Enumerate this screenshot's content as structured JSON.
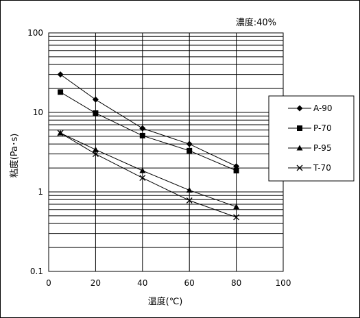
{
  "chart_data": {
    "type": "line",
    "annotation": "濃度:40%",
    "xlabel": "温度(℃)",
    "ylabel": "粘度(Pa･s)",
    "xlim": [
      0,
      100
    ],
    "ylim": [
      0.1,
      100
    ],
    "yscale": "log",
    "grid": true,
    "legend": "right",
    "xticks": [
      "0",
      "20",
      "40",
      "60",
      "80",
      "100"
    ],
    "yticks": [
      "0.1",
      "1",
      "10",
      "100"
    ],
    "series": [
      {
        "name": "A-90",
        "marker": "diamond",
        "x": [
          5,
          20,
          40,
          60,
          80
        ],
        "y": [
          30,
          14.5,
          6.3,
          4.0,
          2.1
        ]
      },
      {
        "name": "P-70",
        "marker": "square",
        "x": [
          5,
          20,
          40,
          60,
          80
        ],
        "y": [
          18,
          9.8,
          5.1,
          3.3,
          1.85
        ]
      },
      {
        "name": "P-95",
        "marker": "triangle",
        "x": [
          5,
          20,
          40,
          60,
          80
        ],
        "y": [
          5.5,
          3.4,
          1.85,
          1.05,
          0.65
        ]
      },
      {
        "name": "T-70",
        "marker": "x",
        "x": [
          5,
          20,
          40,
          60,
          80
        ],
        "y": [
          5.5,
          3.0,
          1.5,
          0.78,
          0.48
        ]
      }
    ]
  }
}
